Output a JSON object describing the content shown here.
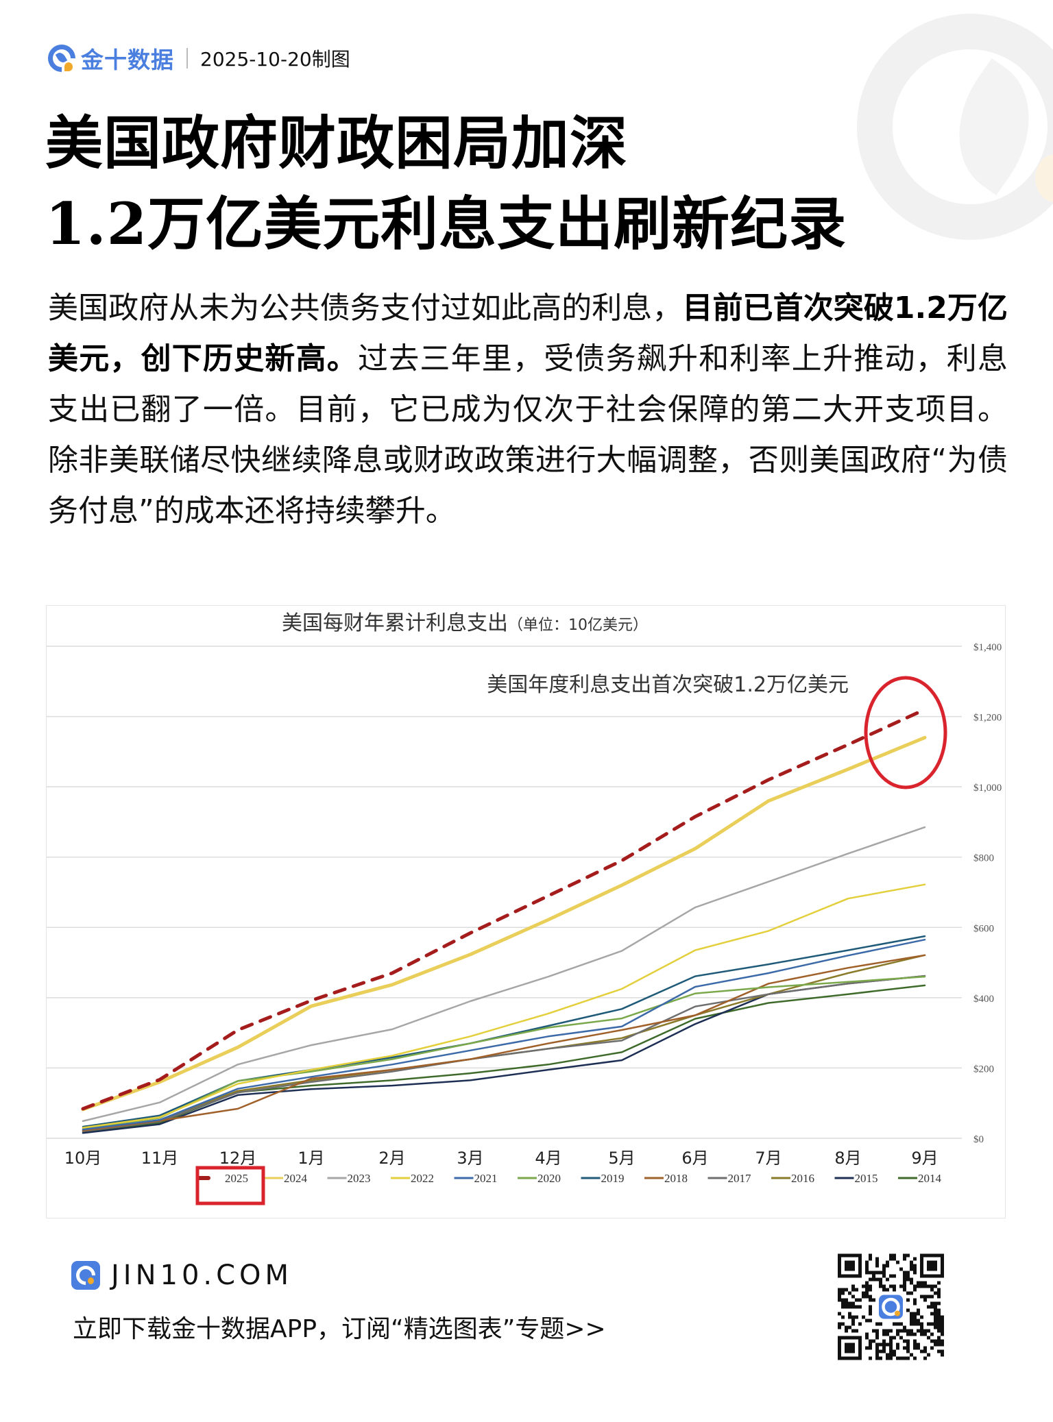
{
  "header": {
    "brand": "金十数据",
    "date": "2025-10-20制图"
  },
  "title": {
    "line1": "美国政府财政困局加深",
    "line2": "1.2万亿美元利息支出刷新纪录"
  },
  "body": {
    "part1": "美国政府从未为公共债务支付过如此高的利息，",
    "bold": "目前已首次突破1.2万亿美元，创下历史新高。",
    "part2": "过去三年里，受债务飙升和利率上升推动，利息支出已翻了一倍。目前，它已成为仅次于社会保障的第二大开支项目。除非美联储尽快继续降息或财政政策进行大幅调整，否则美国政府“为债务付息”的成本还将持续攀升。"
  },
  "chart_data": {
    "type": "line",
    "title": "美国每财年累计利息支出",
    "subtitle": "（单位：10亿美元）",
    "annotation": "美国年度利息支出首次突破1.2万亿美元",
    "xlabel": "",
    "ylabel": "",
    "categories": [
      "10月",
      "11月",
      "12月",
      "1月",
      "2月",
      "3月",
      "4月",
      "5月",
      "6月",
      "7月",
      "8月",
      "9月"
    ],
    "y_ticks": [
      "$0",
      "$200",
      "$400",
      "$600",
      "$800",
      "$1,000",
      "$1,200",
      "$1,400"
    ],
    "ylim": [
      0,
      1400
    ],
    "grid": true,
    "legend_position": "bottom",
    "highlight_series": "2025",
    "series": [
      {
        "name": "2025",
        "color": "#a51c1c",
        "dashed": true,
        "width": 5,
        "values": [
          84,
          167,
          308,
          392,
          470,
          584,
          690,
          790,
          915,
          1020,
          1120,
          1220
        ]
      },
      {
        "name": "2024",
        "color": "#e9cf5a",
        "dashed": false,
        "width": 5,
        "values": [
          82,
          160,
          259,
          376,
          437,
          523,
          622,
          720,
          824,
          960,
          1050,
          1140
        ]
      },
      {
        "name": "2023",
        "color": "#a6a6a6",
        "dashed": false,
        "width": 2.5,
        "values": [
          49,
          102,
          210,
          265,
          310,
          390,
          460,
          533,
          657,
          730,
          810,
          885
        ]
      },
      {
        "name": "2022",
        "color": "#e3cf3c",
        "dashed": false,
        "width": 2.5,
        "values": [
          30,
          60,
          155,
          195,
          235,
          290,
          355,
          425,
          535,
          590,
          682,
          722
        ]
      },
      {
        "name": "2021",
        "color": "#3c6aa8",
        "dashed": false,
        "width": 2.5,
        "values": [
          25,
          52,
          141,
          175,
          210,
          250,
          290,
          318,
          431,
          470,
          520,
          565
        ]
      },
      {
        "name": "2020",
        "color": "#7aa84a",
        "dashed": false,
        "width": 2.5,
        "values": [
          28,
          58,
          163,
          190,
          225,
          270,
          315,
          341,
          412,
          430,
          445,
          460
        ]
      },
      {
        "name": "2019",
        "color": "#1f5a78",
        "dashed": false,
        "width": 2.5,
        "values": [
          33,
          65,
          163,
          195,
          230,
          270,
          320,
          368,
          461,
          495,
          535,
          575
        ]
      },
      {
        "name": "2018",
        "color": "#a0602a",
        "dashed": false,
        "width": 2.5,
        "values": [
          22,
          50,
          84,
          170,
          195,
          225,
          270,
          308,
          350,
          440,
          485,
          521
        ]
      },
      {
        "name": "2017",
        "color": "#6e6e6e",
        "dashed": false,
        "width": 2.5,
        "values": [
          20,
          48,
          130,
          160,
          190,
          225,
          255,
          278,
          375,
          410,
          440,
          462
        ]
      },
      {
        "name": "2016",
        "color": "#8a7a2a",
        "dashed": false,
        "width": 2.5,
        "values": [
          24,
          52,
          135,
          165,
          195,
          225,
          255,
          285,
          350,
          410,
          470,
          521
        ]
      },
      {
        "name": "2015",
        "color": "#1e2f55",
        "dashed": false,
        "width": 2.5,
        "values": [
          15,
          40,
          123,
          140,
          150,
          165,
          195,
          222,
          325,
          410,
          440,
          462
        ]
      },
      {
        "name": "2014",
        "color": "#3e6a2a",
        "dashed": false,
        "width": 2.5,
        "values": [
          18,
          44,
          131,
          150,
          165,
          185,
          210,
          245,
          340,
          385,
          410,
          435
        ]
      }
    ]
  },
  "footer": {
    "domain": "JIN10.COM",
    "cta": "立即下载金十数据APP，订阅“精选图表”专题>>"
  },
  "colors": {
    "brand_blue": "#4a7fe0",
    "brand_orange": "#f0a92a",
    "highlight_red": "#d9232d"
  }
}
